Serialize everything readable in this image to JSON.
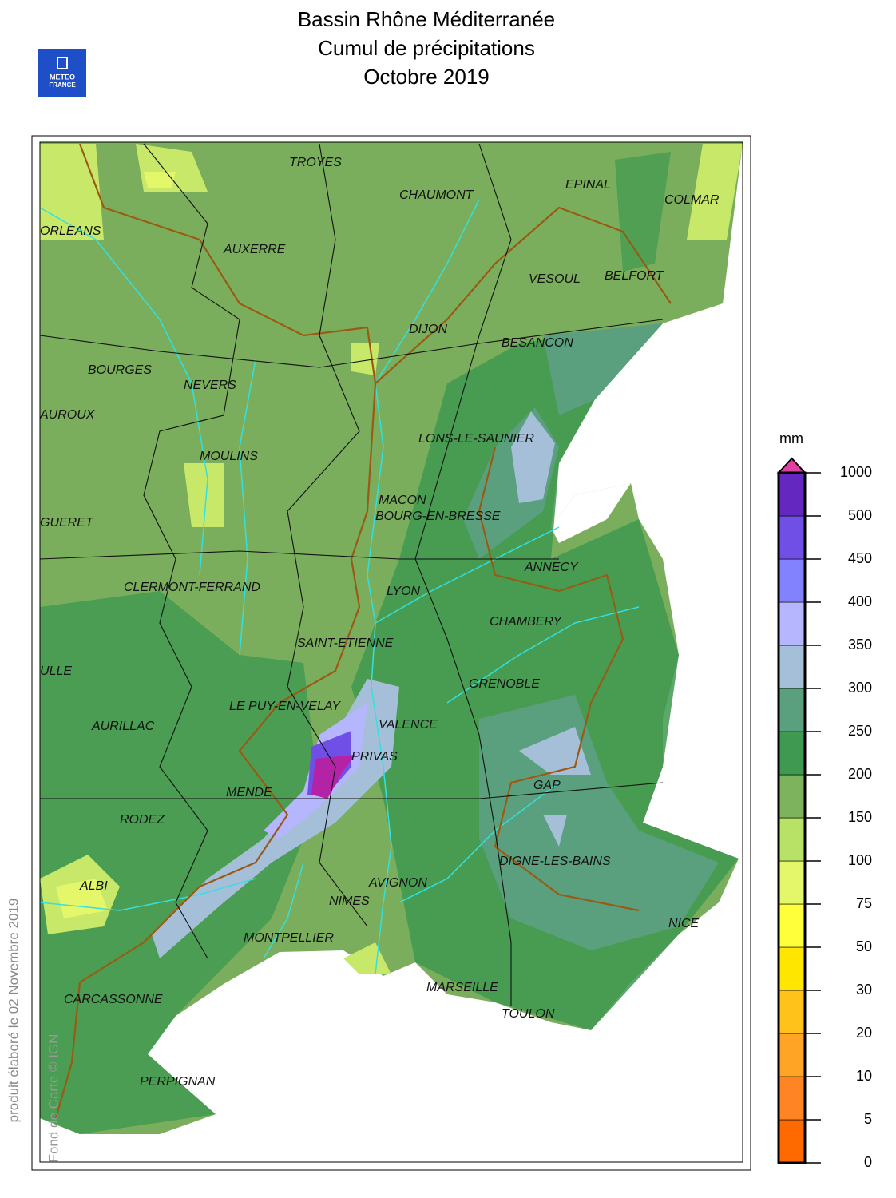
{
  "header": {
    "title_lines": [
      "Bassin Rhône Méditerranée",
      "Cumul de précipitations",
      "Octobre 2019"
    ],
    "logo": [
      "METEO",
      "FRANCE"
    ]
  },
  "map": {
    "cities": [
      "TROYES",
      "CHAUMONT",
      "EPINAL",
      "COLMAR",
      "ORLEANS",
      "AUXERRE",
      "VESOUL",
      "BELFORT",
      "DIJON",
      "BESANCON",
      "BOURGES",
      "NEVERS",
      "AUROUX",
      "LONS-LE-SAUNIER",
      "MOULINS",
      "MACON",
      "BOURG-EN-BRESSE",
      "GUERET",
      "ANNECY",
      "CLERMONT-FERRAND",
      "LYON",
      "CHAMBERY",
      "SAINT-ETIENNE",
      "ULLE",
      "GRENOBLE",
      "LE PUY-EN-VELAY",
      "VALENCE",
      "AURILLAC",
      "PRIVAS",
      "GAP",
      "MENDE",
      "RODEZ",
      "DIGNE-LES-BAINS",
      "ALBI",
      "AVIGNON",
      "NIMES",
      "NICE",
      "MONTPELLIER",
      "MARSEILLE",
      "CARCASSONNE",
      "TOULON",
      "PERPIGNAN"
    ]
  },
  "legend": {
    "unit": "mm",
    "ticks": [
      0,
      5,
      10,
      20,
      30,
      50,
      75,
      100,
      150,
      200,
      250,
      300,
      350,
      400,
      450,
      500,
      1000
    ],
    "colors": [
      "#ff6a00",
      "#ff8424",
      "#ffa424",
      "#ffc21a",
      "#ffe600",
      "#ffff3a",
      "#e4f76a",
      "#b8e266",
      "#7db35c",
      "#3f9950",
      "#5aa07e",
      "#a6bfd8",
      "#b6b6ff",
      "#8282ff",
      "#6f4fe6",
      "#6428c0",
      "#b423a6"
    ],
    "over_color": "#e040a0"
  },
  "credits": {
    "produced": "produit élaboré le 02 Novembre 2019",
    "basemap": "Fond de Carte © IGN"
  }
}
